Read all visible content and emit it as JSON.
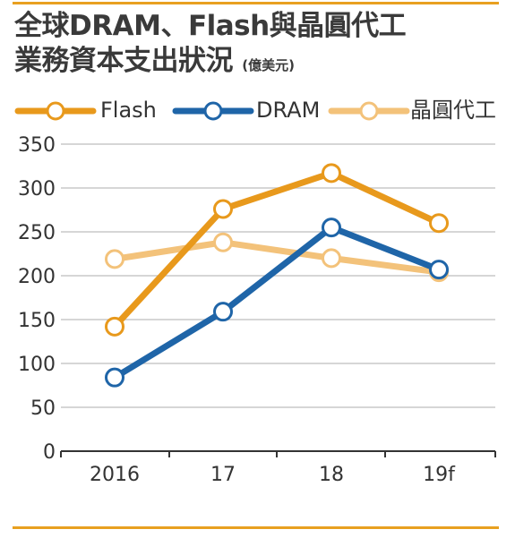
{
  "title_line1": "全球DRAM、Flash與晶圓代工",
  "title_line2": "業務資本支出狀況",
  "title_unit": "(億美元)",
  "chart_data": {
    "type": "line",
    "categories": [
      "2016",
      "17",
      "18",
      "19f"
    ],
    "ylim": [
      0,
      350
    ],
    "yticks": [
      0,
      50,
      100,
      150,
      200,
      250,
      300,
      350
    ],
    "grid": true,
    "legend_position": "top",
    "series": [
      {
        "name": "Flash",
        "color": "#e8991c",
        "values": [
          142,
          276,
          317,
          260
        ]
      },
      {
        "name": "DRAM",
        "color": "#1f65a8",
        "values": [
          84,
          159,
          255,
          207
        ]
      },
      {
        "name": "晶圓代工",
        "color": "#f3c27a",
        "values": [
          219,
          238,
          220,
          204
        ]
      }
    ]
  }
}
